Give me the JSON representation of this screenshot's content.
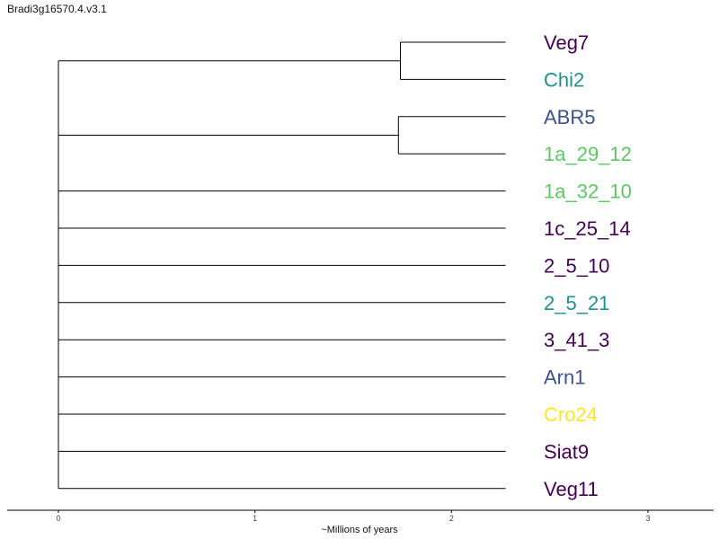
{
  "title": "Bradi3g16570.4.v3.1",
  "colors": {
    "dark_purple": "#440154",
    "teal": "#21908c",
    "blue": "#3b528b",
    "green": "#5dc863",
    "yellow": "#fde725",
    "line": "#000000"
  },
  "axis": {
    "label": "~Millions of years",
    "ticks": [
      "0",
      "1",
      "2",
      "3"
    ]
  },
  "tips": [
    {
      "label": "Veg7",
      "color": "#440154"
    },
    {
      "label": "Chi2",
      "color": "#21908c"
    },
    {
      "label": "ABR5",
      "color": "#3b528b"
    },
    {
      "label": "1a_29_12",
      "color": "#5dc863"
    },
    {
      "label": "1a_32_10",
      "color": "#5dc863"
    },
    {
      "label": "1c_25_14",
      "color": "#440154"
    },
    {
      "label": "2_5_10",
      "color": "#440154"
    },
    {
      "label": "2_5_21",
      "color": "#21908c"
    },
    {
      "label": "3_41_3",
      "color": "#440154"
    },
    {
      "label": "Arn1",
      "color": "#3b528b"
    },
    {
      "label": "Cro24",
      "color": "#fde725"
    },
    {
      "label": "Siat9",
      "color": "#440154"
    },
    {
      "label": "Veg11",
      "color": "#440154"
    }
  ],
  "clades": [
    {
      "members": [
        0,
        1
      ],
      "node_time": 1.74
    },
    {
      "members": [
        2,
        3
      ],
      "node_time": 1.73
    }
  ],
  "tip_time": 2.44
}
